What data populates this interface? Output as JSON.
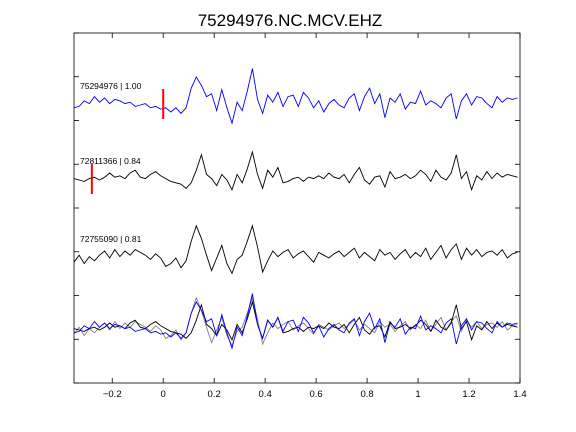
{
  "chart_data": {
    "type": "line",
    "title": "75294976.NC.MCV.EHZ",
    "xlabel": "",
    "ylabel": "",
    "xlim": [
      -0.35,
      1.4
    ],
    "x_ticks": [
      -0.2,
      0,
      0.2,
      0.4,
      0.6,
      0.8,
      1,
      1.2,
      1.4
    ],
    "x_tick_labels": [
      "−0.2",
      "0",
      "0.2",
      "0.4",
      "0.6",
      "0.8",
      "1",
      "1.2",
      "1.4"
    ],
    "grid": false,
    "legend": "none",
    "traces": [
      {
        "label": "75294976 | 1.00",
        "color": "#0000ff",
        "pick_time": 0.0,
        "pick_color": "#ff0000",
        "t": [
          -0.35,
          -0.33,
          -0.31,
          -0.29,
          -0.27,
          -0.25,
          -0.23,
          -0.21,
          -0.19,
          -0.17,
          -0.15,
          -0.13,
          -0.11,
          -0.09,
          -0.07,
          -0.05,
          -0.03,
          -0.01,
          0.01,
          0.03,
          0.05,
          0.07,
          0.09,
          0.11,
          0.13,
          0.15,
          0.17,
          0.19,
          0.21,
          0.23,
          0.25,
          0.27,
          0.29,
          0.31,
          0.33,
          0.35,
          0.37,
          0.39,
          0.41,
          0.43,
          0.45,
          0.47,
          0.49,
          0.51,
          0.53,
          0.55,
          0.57,
          0.59,
          0.61,
          0.63,
          0.65,
          0.67,
          0.69,
          0.71,
          0.73,
          0.75,
          0.77,
          0.79,
          0.81,
          0.83,
          0.85,
          0.87,
          0.89,
          0.91,
          0.93,
          0.95,
          0.97,
          0.99,
          1.01,
          1.03,
          1.05,
          1.07,
          1.09,
          1.11,
          1.13,
          1.15,
          1.17,
          1.19,
          1.21,
          1.23,
          1.25,
          1.27,
          1.29,
          1.31,
          1.33,
          1.35,
          1.37,
          1.39
        ],
        "amp": [
          -0.1,
          -0.05,
          0.15,
          0.05,
          0.3,
          0.1,
          0.25,
          0.05,
          0.2,
          0.15,
          0.05,
          0.1,
          -0.05,
          0.0,
          0.05,
          -0.1,
          -0.05,
          -0.15,
          -0.1,
          -0.25,
          -0.1,
          -0.3,
          -0.1,
          0.6,
          1.0,
          0.7,
          0.3,
          0.4,
          -0.2,
          0.55,
          -0.1,
          -0.65,
          0.1,
          -0.2,
          0.5,
          1.3,
          0.2,
          -0.3,
          0.35,
          0.1,
          0.45,
          -0.05,
          0.3,
          0.35,
          -0.05,
          0.45,
          0.25,
          -0.1,
          0.15,
          -0.25,
          0.05,
          0.2,
          0.0,
          -0.1,
          0.25,
          0.4,
          -0.2,
          0.3,
          0.6,
          0.05,
          0.4,
          -0.45,
          0.25,
          0.1,
          0.4,
          -0.15,
          0.1,
          0.05,
          0.5,
          0.0,
          0.15,
          0.05,
          -0.1,
          0.25,
          0.4,
          -0.5,
          0.15,
          0.4,
          0.0,
          0.3,
          0.25,
          0.05,
          -0.1,
          0.3,
          0.1,
          0.25,
          0.2,
          0.25
        ]
      },
      {
        "label": "72811366 | 0.84",
        "color": "#000000",
        "pick_time": -0.28,
        "pick_color": "#ff0000",
        "t": [
          -0.35,
          -0.33,
          -0.31,
          -0.29,
          -0.27,
          -0.25,
          -0.23,
          -0.21,
          -0.19,
          -0.17,
          -0.15,
          -0.13,
          -0.11,
          -0.09,
          -0.07,
          -0.05,
          -0.03,
          -0.01,
          0.01,
          0.03,
          0.05,
          0.07,
          0.09,
          0.11,
          0.13,
          0.15,
          0.17,
          0.19,
          0.21,
          0.23,
          0.25,
          0.27,
          0.29,
          0.31,
          0.33,
          0.35,
          0.37,
          0.39,
          0.41,
          0.43,
          0.45,
          0.47,
          0.49,
          0.51,
          0.53,
          0.55,
          0.57,
          0.59,
          0.61,
          0.63,
          0.65,
          0.67,
          0.69,
          0.71,
          0.73,
          0.75,
          0.77,
          0.79,
          0.81,
          0.83,
          0.85,
          0.87,
          0.89,
          0.91,
          0.93,
          0.95,
          0.97,
          0.99,
          1.01,
          1.03,
          1.05,
          1.07,
          1.09,
          1.11,
          1.13,
          1.15,
          1.17,
          1.19,
          1.21,
          1.23,
          1.25,
          1.27,
          1.29,
          1.31,
          1.33,
          1.35,
          1.37,
          1.39
        ],
        "amp": [
          0.05,
          0.0,
          -0.05,
          0.05,
          0.1,
          0.0,
          0.1,
          0.25,
          0.1,
          0.15,
          0.05,
          0.25,
          0.35,
          0.1,
          0.05,
          0.2,
          0.3,
          0.15,
          0.05,
          -0.05,
          -0.1,
          -0.15,
          -0.3,
          -0.1,
          0.35,
          0.9,
          0.2,
          0.05,
          -0.2,
          0.2,
          0.0,
          -0.35,
          0.2,
          -0.1,
          0.4,
          1.0,
          0.2,
          -0.3,
          0.35,
          0.1,
          0.45,
          -0.1,
          -0.05,
          0.05,
          0.1,
          -0.05,
          0.1,
          0.05,
          0.15,
          0.05,
          0.25,
          0.1,
          0.05,
          0.2,
          -0.1,
          0.2,
          0.45,
          0.0,
          -0.15,
          0.1,
          0.15,
          -0.25,
          0.3,
          0.05,
          0.1,
          0.2,
          0.05,
          0.15,
          0.35,
          0.2,
          -0.05,
          0.35,
          0.1,
          0.0,
          0.25,
          0.9,
          0.05,
          0.3,
          -0.35,
          0.15,
          0.0,
          0.3,
          0.05,
          0.25,
          0.1,
          0.2,
          0.15,
          0.1
        ]
      },
      {
        "label": "72755090 | 0.81",
        "color": "#000000",
        "t": [
          -0.35,
          -0.33,
          -0.31,
          -0.29,
          -0.27,
          -0.25,
          -0.23,
          -0.21,
          -0.19,
          -0.17,
          -0.15,
          -0.13,
          -0.11,
          -0.09,
          -0.07,
          -0.05,
          -0.03,
          -0.01,
          0.01,
          0.03,
          0.05,
          0.07,
          0.09,
          0.11,
          0.13,
          0.15,
          0.17,
          0.19,
          0.21,
          0.23,
          0.25,
          0.27,
          0.29,
          0.31,
          0.33,
          0.35,
          0.37,
          0.39,
          0.41,
          0.43,
          0.45,
          0.47,
          0.49,
          0.51,
          0.53,
          0.55,
          0.57,
          0.59,
          0.61,
          0.63,
          0.65,
          0.67,
          0.69,
          0.71,
          0.73,
          0.75,
          0.77,
          0.79,
          0.81,
          0.83,
          0.85,
          0.87,
          0.89,
          0.91,
          0.93,
          0.95,
          0.97,
          0.99,
          1.01,
          1.03,
          1.05,
          1.07,
          1.09,
          1.11,
          1.13,
          1.15,
          1.17,
          1.19,
          1.21,
          1.23,
          1.25,
          1.27,
          1.29,
          1.31,
          1.33,
          1.35,
          1.37,
          1.39
        ],
        "amp": [
          -0.15,
          0.1,
          -0.2,
          0.05,
          -0.1,
          0.1,
          0.25,
          0.0,
          0.3,
          0.05,
          0.25,
          0.1,
          0.3,
          0.2,
          0.1,
          -0.05,
          0.15,
          0.0,
          -0.3,
          -0.2,
          0.0,
          -0.35,
          -0.1,
          0.6,
          1.15,
          0.7,
          0.1,
          -0.45,
          0.0,
          0.45,
          -0.2,
          -0.55,
          -0.05,
          0.1,
          0.6,
          1.15,
          0.4,
          -0.5,
          -0.1,
          0.25,
          0.05,
          0.2,
          0.3,
          0.0,
          0.15,
          0.25,
          0.05,
          -0.15,
          0.2,
          0.1,
          0.0,
          0.15,
          0.25,
          0.05,
          0.2,
          0.35,
          0.0,
          0.2,
          0.05,
          -0.1,
          0.3,
          0.1,
          0.2,
          -0.05,
          0.15,
          0.3,
          0.0,
          0.2,
          0.05,
          0.35,
          -0.05,
          0.2,
          0.45,
          0.0,
          0.3,
          0.5,
          -0.05,
          0.35,
          0.1,
          0.3,
          0.05,
          0.2,
          0.25,
          0.1,
          0.3,
          0.0,
          0.15,
          0.2
        ]
      }
    ],
    "overlay": {
      "description_key": "stack of all traces overlaid",
      "series_colors": [
        "#0000ff",
        "#000000",
        "#808080"
      ]
    }
  }
}
